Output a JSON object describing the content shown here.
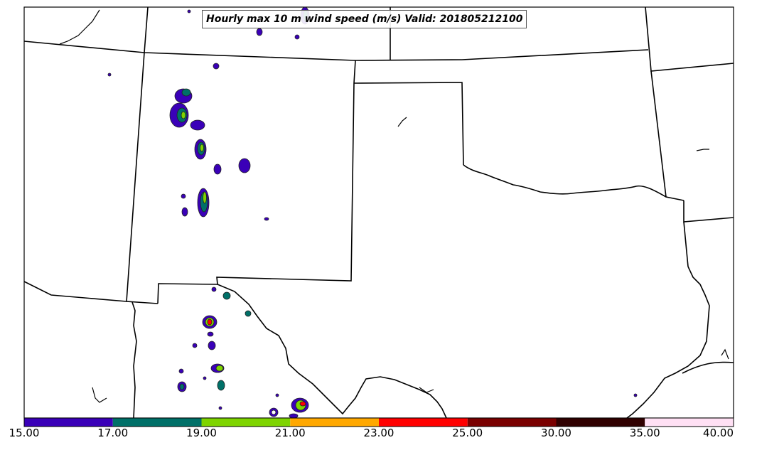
{
  "title": "Hourly max 10 m wind speed (m/s) Valid: 201805212100",
  "colorbar": {
    "ticks": [
      "15.00",
      "17.00",
      "19.00",
      "21.00",
      "23.00",
      "25.00",
      "30.00",
      "35.00",
      "40.00"
    ],
    "colors": [
      "#3a00b8",
      "#007068",
      "#7ed400",
      "#ffa800",
      "#ff0000",
      "#7a0000",
      "#300000",
      "#ffe0f4"
    ]
  },
  "palette": {
    "border": "#000000",
    "background": "#ffffff"
  }
}
